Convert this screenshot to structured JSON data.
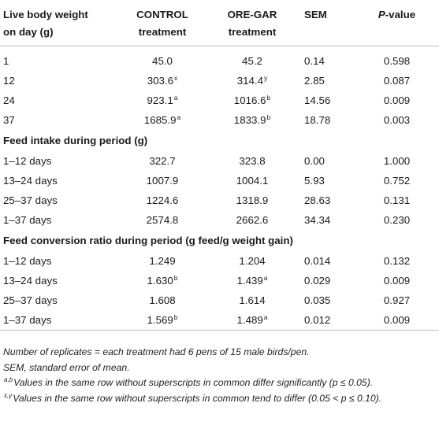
{
  "header": {
    "col0_line1": "Live body weight",
    "col0_line2": "on day (g)",
    "col1_line1": "CONTROL",
    "col1_line2": "treatment",
    "col2_line1": "ORE-GAR",
    "col2_line2": "treatment",
    "col3": "SEM",
    "col4_italic": "P",
    "col4_rest": "-value"
  },
  "live_weight": [
    {
      "label": "1",
      "control": "45.0",
      "control_sup": "",
      "oregar": "45.2",
      "oregar_sup": "",
      "sem": "0.14",
      "p": "0.598"
    },
    {
      "label": "12",
      "control": "303.6",
      "control_sup": "x",
      "oregar": "314.4",
      "oregar_sup": "y",
      "sem": "2.85",
      "p": "0.087"
    },
    {
      "label": "24",
      "control": "923.1",
      "control_sup": "a",
      "oregar": "1016.6",
      "oregar_sup": "b",
      "sem": "14.56",
      "p": "0.009"
    },
    {
      "label": "37",
      "control": "1685.9",
      "control_sup": "a",
      "oregar": "1833.9",
      "oregar_sup": "b",
      "sem": "18.78",
      "p": "0.003"
    }
  ],
  "feed_intake_title": "Feed intake during period (g)",
  "feed_intake": [
    {
      "label": "1–12 days",
      "control": "322.7",
      "control_sup": "",
      "oregar": "323.8",
      "oregar_sup": "",
      "sem": "0.00",
      "p": "1.000"
    },
    {
      "label": "13–24 days",
      "control": "1007.9",
      "control_sup": "",
      "oregar": "1004.1",
      "oregar_sup": "",
      "sem": "5.93",
      "p": "0.752"
    },
    {
      "label": "25–37 days",
      "control": "1224.6",
      "control_sup": "",
      "oregar": "1318.9",
      "oregar_sup": "",
      "sem": "28.63",
      "p": "0.131"
    },
    {
      "label": "1–37 days",
      "control": "2574.8",
      "control_sup": "",
      "oregar": "2662.6",
      "oregar_sup": "",
      "sem": "34.34",
      "p": "0.230"
    }
  ],
  "fcr_title": "Feed conversion ratio during period (g feed/g weight gain)",
  "fcr": [
    {
      "label": "1–12 days",
      "control": "1.249",
      "control_sup": "",
      "oregar": "1.204",
      "oregar_sup": "",
      "sem": "0.014",
      "p": "0.132"
    },
    {
      "label": "13–24 days",
      "control": "1.630",
      "control_sup": "b",
      "oregar": "1.439",
      "oregar_sup": "a",
      "sem": "0.029",
      "p": "0.009"
    },
    {
      "label": "25–37 days",
      "control": "1.608",
      "control_sup": "",
      "oregar": "1.614",
      "oregar_sup": "",
      "sem": "0.035",
      "p": "0.927"
    },
    {
      "label": "1–37 days",
      "control": "1.569",
      "control_sup": "b",
      "oregar": "1.489",
      "oregar_sup": "a",
      "sem": "0.012",
      "p": "0.009"
    }
  ],
  "notes": {
    "replicates": "Number of replicates = each treatment had 6 pens of 15 male birds/pen.",
    "sem": "SEM, standard error of mean.",
    "ab_sup": "a,b",
    "ab_text": "Values in the same row without superscripts in common differ significantly (p ≤ 0.05).",
    "xy_sup": "x,y",
    "xy_text": "Values in the same row without superscripts in common tend to differ (0.05 < p ≤ 0.10)."
  }
}
